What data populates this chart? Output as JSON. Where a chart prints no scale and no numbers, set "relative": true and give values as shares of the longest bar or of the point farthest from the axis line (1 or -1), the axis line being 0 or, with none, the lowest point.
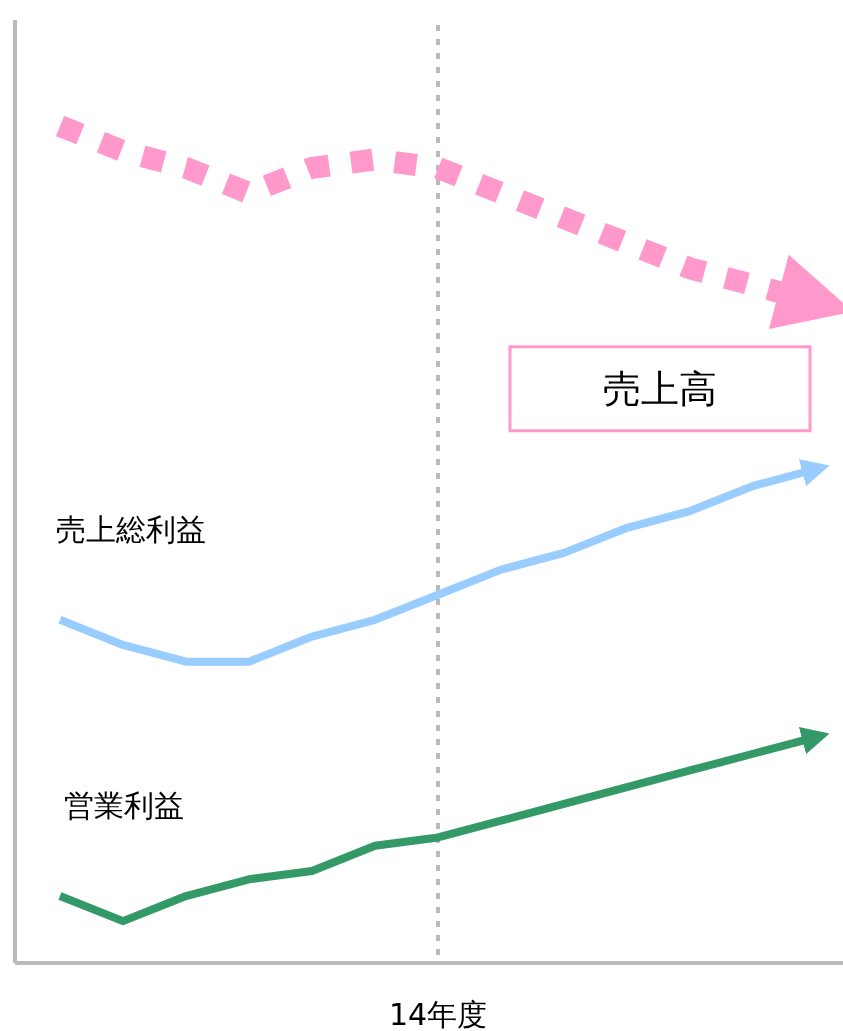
{
  "chart_data": {
    "type": "line",
    "relative": true,
    "categories": [
      null,
      null,
      null,
      null,
      null,
      null,
      null,
      null,
      null,
      null,
      null,
      null,
      null
    ],
    "series": [
      {
        "name": "売上高",
        "color": "#ff99cc",
        "line_style": "dotted",
        "values": [
          1.0,
          0.97,
          0.95,
          0.92,
          0.95,
          0.96,
          0.95,
          0.92,
          0.89,
          0.86,
          0.83,
          0.81,
          0.79
        ]
      },
      {
        "name": "売上総利益",
        "color": "#99ccff",
        "line_style": "solid",
        "values": [
          0.41,
          0.38,
          0.36,
          0.36,
          0.39,
          0.41,
          0.44,
          0.47,
          0.49,
          0.52,
          0.54,
          0.57,
          0.59
        ]
      },
      {
        "name": "営業利益",
        "color": "#339966",
        "line_style": "solid",
        "values": [
          0.08,
          0.05,
          0.08,
          0.1,
          0.11,
          0.14,
          0.15,
          0.17,
          0.19,
          0.21,
          0.23,
          0.25,
          0.27
        ]
      }
    ],
    "xlabel": "14年度",
    "grid": false,
    "legend": false,
    "marker": "none"
  }
}
